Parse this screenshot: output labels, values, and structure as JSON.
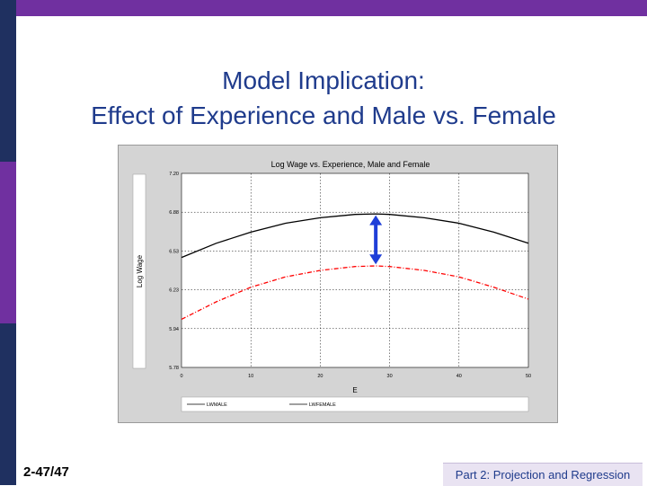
{
  "slide": {
    "title_line1": "Model Implication:",
    "title_line2": "Effect of Experience and Male vs. Female",
    "number": "2-47/47",
    "footer": "Part 2: Projection and Regression"
  },
  "colors": {
    "accent_purple": "#7030a0",
    "dark_navy": "#1f3060",
    "title_blue": "#1f3b8c",
    "male_line": "#000000",
    "female_line": "#ff0000",
    "arrow_blue": "#1f3fd8"
  },
  "chart_data": {
    "type": "line",
    "title": "Log Wage vs. Experience, Male and Female",
    "xlabel": "E",
    "ylabel": "Log Wage",
    "xlim": [
      0,
      50
    ],
    "ylim": [
      5.78,
      7.2
    ],
    "xticks": [
      0,
      10,
      20,
      30,
      40,
      50
    ],
    "yticks": [
      5.78,
      5.94,
      6.23,
      6.53,
      6.88,
      7.2
    ],
    "ytick_labels": [
      "5.78",
      "5.94",
      "6.23",
      "6.53",
      "6.88",
      "7.20"
    ],
    "grid": true,
    "legend_position": "bottom",
    "x": [
      0,
      5,
      10,
      15,
      20,
      25,
      28,
      30,
      35,
      40,
      45,
      50
    ],
    "series": [
      {
        "name": "LWMALE",
        "style": "solid",
        "values": [
          6.48,
          6.6,
          6.7,
          6.78,
          6.83,
          6.86,
          6.865,
          6.86,
          6.83,
          6.78,
          6.7,
          6.6
        ]
      },
      {
        "name": "LWFEMALE",
        "style": "dashed",
        "values": [
          6.01,
          6.14,
          6.25,
          6.33,
          6.38,
          6.41,
          6.415,
          6.41,
          6.38,
          6.33,
          6.25,
          6.16
        ]
      }
    ],
    "annotation": {
      "type": "double-arrow",
      "x": 28,
      "y_from": 6.42,
      "y_to": 6.86
    }
  }
}
